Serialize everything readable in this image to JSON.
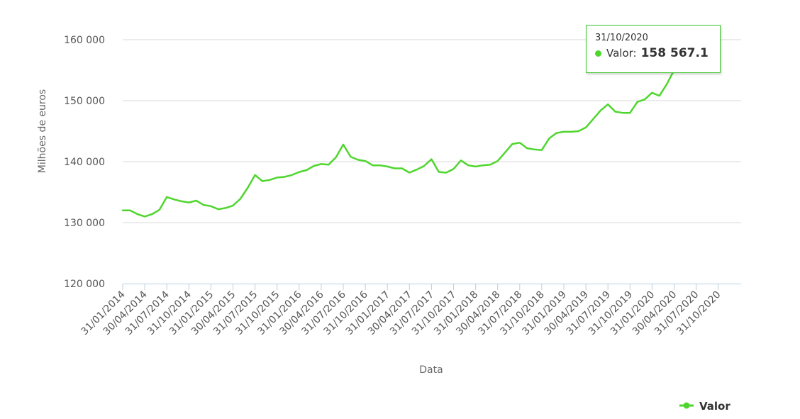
{
  "colors": {
    "series": "#4fd62e",
    "grid": "#d8d8d8",
    "axis": "#b8cfe0"
  },
  "chart_data": {
    "type": "line",
    "xlabel": "Data",
    "ylabel": "Milhões de euros",
    "ylim": [
      120000,
      160000
    ],
    "yticks": [
      120000,
      130000,
      140000,
      150000,
      160000
    ],
    "ytick_labels": [
      "120 000",
      "130 000",
      "140 000",
      "150 000",
      "160 000"
    ],
    "xtick_labels": [
      "31/01/2014",
      "30/04/2014",
      "31/07/2014",
      "31/10/2014",
      "31/01/2015",
      "30/04/2015",
      "31/07/2015",
      "31/10/2015",
      "31/01/2016",
      "30/04/2016",
      "31/07/2016",
      "31/10/2016",
      "31/01/2017",
      "30/04/2017",
      "31/07/2017",
      "31/10/2017",
      "31/01/2018",
      "30/04/2018",
      "31/07/2018",
      "31/10/2018",
      "31/01/2019",
      "30/04/2019",
      "31/07/2019",
      "31/10/2019",
      "31/01/2020",
      "30/04/2020",
      "31/07/2020",
      "31/10/2020"
    ],
    "legend": "bottom-right",
    "grid": true,
    "series": [
      {
        "name": "Valor",
        "values": [
          132000,
          132000,
          131400,
          131000,
          131400,
          132100,
          134200,
          133800,
          133500,
          133300,
          133600,
          132900,
          132700,
          132200,
          132400,
          132800,
          133900,
          135700,
          137800,
          136800,
          137000,
          137400,
          137500,
          137800,
          138300,
          138600,
          139300,
          139600,
          139500,
          140700,
          142800,
          140800,
          140300,
          140100,
          139400,
          139400,
          139200,
          138900,
          138900,
          138200,
          138700,
          139300,
          140400,
          138300,
          138200,
          138800,
          140200,
          139400,
          139200,
          139400,
          139500,
          140100,
          141500,
          142900,
          143100,
          142200,
          142000,
          141900,
          143800,
          144700,
          144900,
          144900,
          145000,
          145600,
          147000,
          148400,
          149400,
          148200,
          148000,
          148000,
          149800,
          150200,
          151300,
          150800,
          152700,
          155000,
          156200,
          157800,
          158900,
          158200,
          158300,
          158567.1
        ]
      }
    ]
  },
  "tooltip": {
    "date": "31/10/2020",
    "label": "Valor:",
    "value": "158 567.1"
  },
  "legend": {
    "label": "Valor"
  }
}
